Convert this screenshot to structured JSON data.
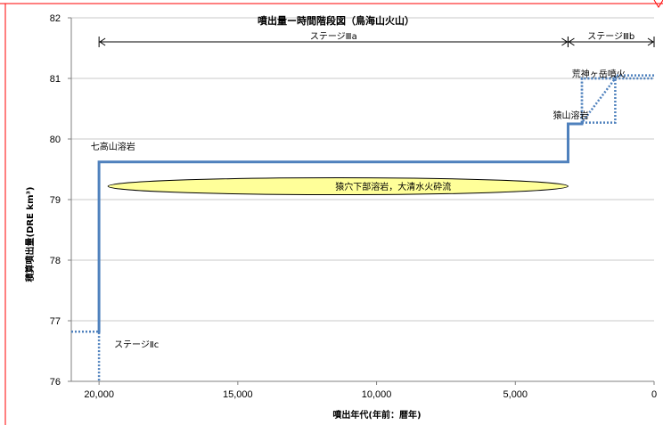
{
  "chart_data": {
    "type": "line",
    "title": "噴出量ー時間階段図（鳥海山火山）",
    "xlabel": "噴出年代(年前：暦年)",
    "ylabel": "積算噴出量(DRE km³)",
    "xlim": [
      21000,
      0
    ],
    "ylim": [
      76,
      82
    ],
    "x_reversed": true,
    "x_ticks": [
      20000,
      15000,
      10000,
      5000,
      0
    ],
    "x_tick_labels": [
      "20,000",
      "15,000",
      "10,000",
      "5,000",
      "0"
    ],
    "y_ticks": [
      76,
      77,
      78,
      79,
      80,
      81,
      82
    ],
    "y_tick_labels": [
      "76",
      "77",
      "78",
      "79",
      "80",
      "81",
      "82"
    ],
    "grid": true,
    "series": [
      {
        "style": "solid",
        "color": "#4f81bd",
        "x": [
          20000,
          20000,
          3100,
          3100,
          2600,
          2600
        ],
        "y": [
          76.8,
          79.62,
          79.62,
          80.25,
          80.25,
          80.27
        ]
      },
      {
        "style": "dotted",
        "color": "#4f81bd",
        "x": [
          21000,
          20000,
          20000
        ],
        "y": [
          76.82,
          76.82,
          76.0
        ]
      },
      {
        "style": "dotted",
        "color": "#4f81bd",
        "x": [
          2600,
          2600,
          1400,
          1400,
          0
        ],
        "y": [
          80.27,
          81.0,
          81.0,
          81.05,
          81.05
        ]
      },
      {
        "style": "dotted",
        "color": "#4f81bd",
        "x": [
          2600,
          1400,
          1400,
          2600,
          2600,
          1400,
          0
        ],
        "y": [
          80.27,
          80.27,
          81.0,
          81.0,
          80.27,
          81.0,
          81.0
        ]
      }
    ],
    "stages": [
      {
        "label": "ステージⅢa",
        "from": 20000,
        "to": 3100
      },
      {
        "label": "ステージⅢb",
        "from": 3100,
        "to": 0
      }
    ],
    "annotations": [
      {
        "text": "七高山溶岩",
        "x": 19500,
        "y": 79.88
      },
      {
        "text": "猿穴下部溶岩，大清水火砕流",
        "x": 9400,
        "y": 79.22
      },
      {
        "text": "猿山溶岩",
        "x": 3000,
        "y": 80.4
      },
      {
        "text": "荒神ヶ岳噴火",
        "x": 2000,
        "y": 81.08
      },
      {
        "text": "ステージⅡc",
        "x": 18650,
        "y": 76.62
      }
    ],
    "ellipse": {
      "x_from": 20000,
      "x_to": 3100,
      "y_center": 79.22,
      "y_half_height": 0.14,
      "fill": "#ffff99"
    }
  }
}
